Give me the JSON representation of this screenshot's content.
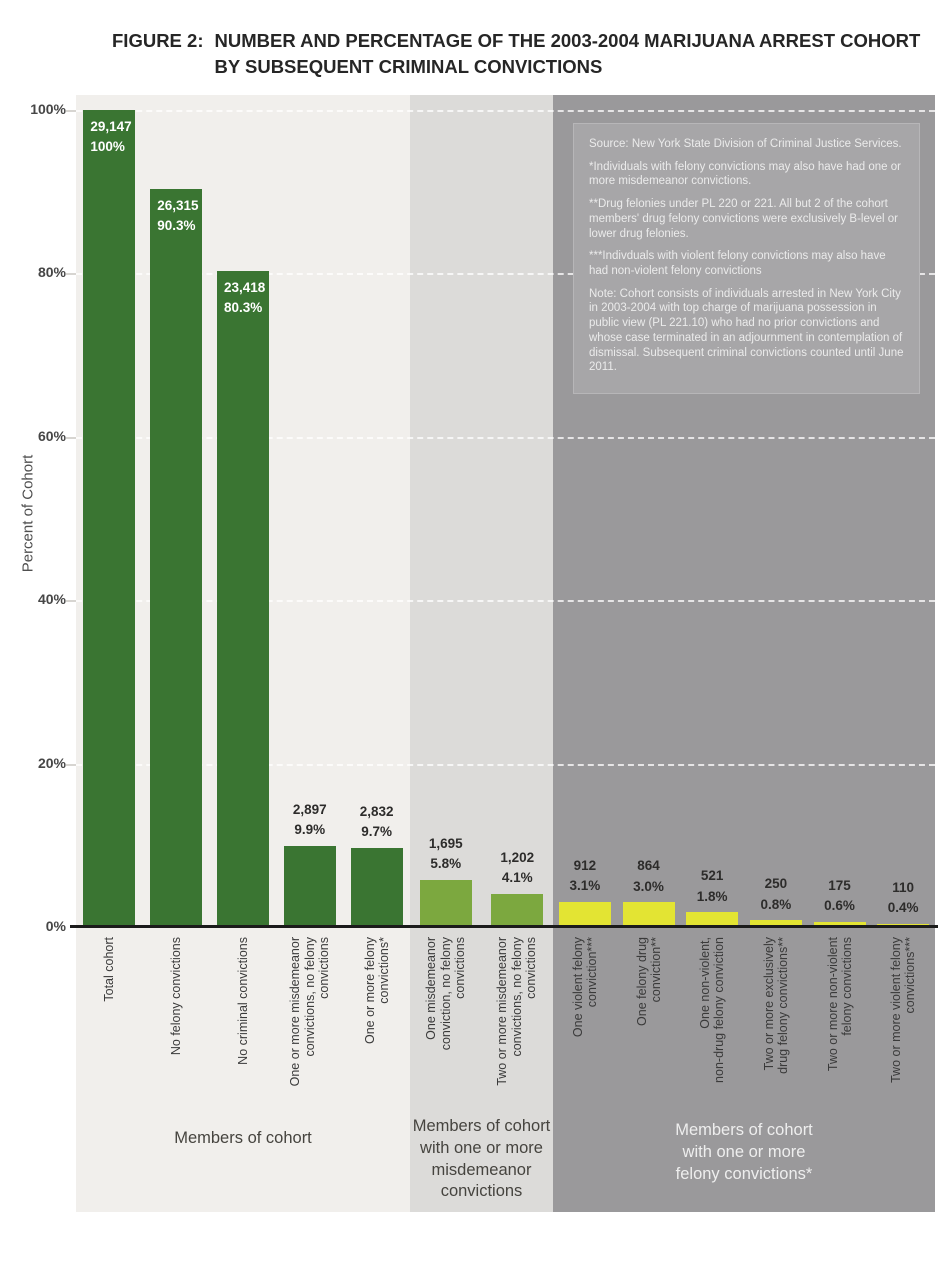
{
  "title": {
    "prefix": "FIGURE 2:",
    "line1": "NUMBER AND PERCENTAGE OF THE 2003-2004 MARIJUANA ARREST COHORT",
    "line2": "BY SUBSEQUENT CRIMINAL CONVICTIONS"
  },
  "y_axis": {
    "label": "Percent of Cohort",
    "ticks": [
      {
        "pct": 100,
        "label": "100%"
      },
      {
        "pct": 80,
        "label": "80%"
      },
      {
        "pct": 60,
        "label": "60%"
      },
      {
        "pct": 40,
        "label": "40%"
      },
      {
        "pct": 20,
        "label": "20%"
      },
      {
        "pct": 0,
        "label": "0%"
      }
    ]
  },
  "notes": {
    "paragraphs": [
      "Source: New York State Division of Criminal Justice Services.",
      "*Individuals with felony convictions may also have had one or more misdemeanor convictions.",
      "**Drug felonies under PL 220 or 221. All but 2 of the cohort members' drug felony convictions were exclusively B-level or lower drug felonies.",
      "***Indivduals with violent felony convictions may also have had non-violent felony convictions",
      "Note: Cohort consists of individuals arrested in New York City in 2003-2004 with top charge of marijuana possession in public view (PL 221.10) who had no prior convictions and whose case terminated in an adjournment in contemplation of dismissal. Subsequent criminal convictions counted until June 2011."
    ]
  },
  "chart_data": {
    "type": "bar",
    "ylabel": "Percent of Cohort",
    "ylim": [
      0,
      100
    ],
    "y_tick_pcts": [
      0,
      20,
      40,
      60,
      80,
      100
    ],
    "grid": "horizontal-dashed",
    "colors": {
      "axis": "#1b1b1b",
      "group_bar_colors": [
        "#3a7532",
        "#7ca83f",
        "#e3e433"
      ],
      "group_panel_colors": [
        "#f1efec",
        "#dcdbd9",
        "#9a999b"
      ],
      "group_label_colors": [
        "#46443f",
        "#46443f",
        "#eeeeee"
      ]
    },
    "groups": [
      {
        "label": "Members of cohort",
        "bars": [
          {
            "category": "Total cohort",
            "count": "29,147",
            "pct": 100,
            "pct_label": "100%"
          },
          {
            "category": "No felony convictions",
            "count": "26,315",
            "pct": 90.3,
            "pct_label": "90.3%"
          },
          {
            "category": "No criminal convictions",
            "count": "23,418",
            "pct": 80.3,
            "pct_label": "80.3%"
          },
          {
            "category": "One or more misdemeanor\nconvictions, no felony\nconvictions",
            "count": "2,897",
            "pct": 9.9,
            "pct_label": "9.9%"
          },
          {
            "category": "One or more felony\nconvictions*",
            "count": "2,832",
            "pct": 9.7,
            "pct_label": "9.7%"
          }
        ]
      },
      {
        "label": "Members of cohort\nwith one or more\nmisdemeanor\nconvictions",
        "bars": [
          {
            "category": "One misdemeanor\nconviction, no felony\nconvictions",
            "count": "1,695",
            "pct": 5.8,
            "pct_label": "5.8%"
          },
          {
            "category": "Two or more misdemeanor\nconvictions, no felony\nconvictions",
            "count": "1,202",
            "pct": 4.1,
            "pct_label": "4.1%"
          }
        ]
      },
      {
        "label": "Members of cohort\nwith one or more\nfelony convictions*",
        "bars": [
          {
            "category": "One violent felony\nconviction***",
            "count": "912",
            "pct": 3.1,
            "pct_label": "3.1%"
          },
          {
            "category": "One felony drug\nconviction**",
            "count": "864",
            "pct": 3.0,
            "pct_label": "3.0%"
          },
          {
            "category": "One non-violent,\nnon-drug felony conviction",
            "count": "521",
            "pct": 1.8,
            "pct_label": "1.8%"
          },
          {
            "category": "Two or more exclusively\ndrug felony convictions**",
            "count": "250",
            "pct": 0.8,
            "pct_label": "0.8%"
          },
          {
            "category": "Two or more non-violent\nfelony convictions",
            "count": "175",
            "pct": 0.6,
            "pct_label": "0.6%"
          },
          {
            "category": "Two or more violent felony\nconvictions***",
            "count": "110",
            "pct": 0.4,
            "pct_label": "0.4%"
          }
        ]
      }
    ]
  }
}
